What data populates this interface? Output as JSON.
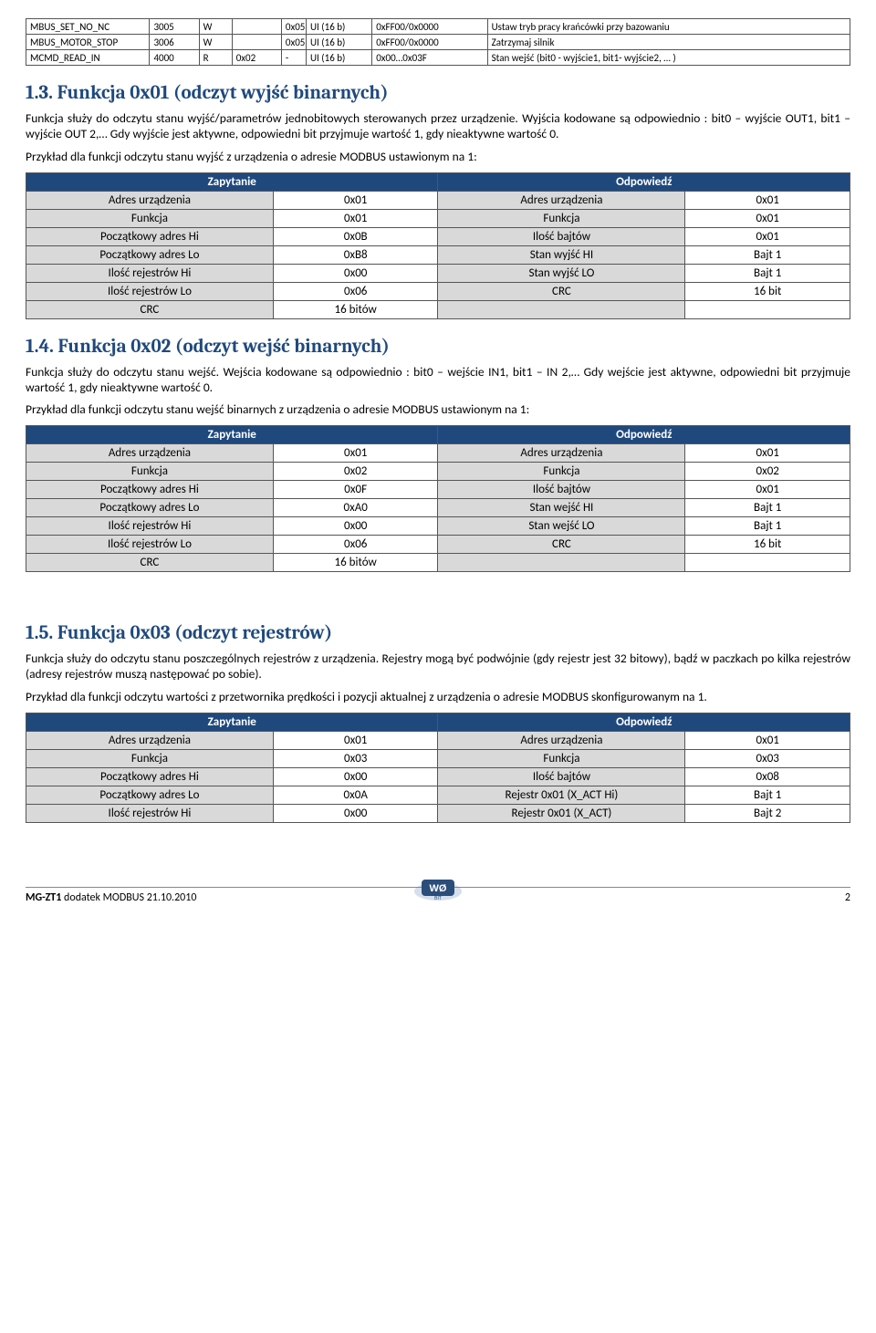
{
  "reg_table": {
    "rows": [
      [
        "MBUS_SET_NO_NC",
        "3005",
        "W",
        "",
        "0x05",
        "UI (16 b)",
        "0xFF00/0x0000",
        "Ustaw tryb pracy krańcówki przy bazowaniu"
      ],
      [
        "MBUS_MOTOR_STOP",
        "3006",
        "W",
        "",
        "0x05",
        "UI (16 b)",
        "0xFF00/0x0000",
        "Zatrzymaj silnik"
      ],
      [
        "MCMD_READ_IN",
        "4000",
        "R",
        "0x02",
        "-",
        "UI (16 b)",
        "0x00…0x03F",
        "Stan wejść (bit0 - wyjście1, bit1- wyjście2, … )"
      ]
    ]
  },
  "s1": {
    "title": "1.3.  Funkcja 0x01 (odczyt wyjść binarnych)",
    "p1": "Funkcja służy do odczytu stanu wyjść/parametrów jednobitowych sterowanych przez urządzenie. Wyjścia kodowane są odpowiednio : bit0 – wyjście OUT1, bit1 – wyjście OUT 2,… Gdy wyjście jest aktywne, odpowiedni bit przyjmuje wartość 1, gdy nieaktywne wartość 0.",
    "p2": "Przykład dla funkcji odczytu stanu wyjść z urządzenia o adresie MODBUS ustawionym na 1:",
    "hdr_q": "Zapytanie",
    "hdr_r": "Odpowiedź",
    "rows": [
      [
        "Adres urządzenia",
        "0x01",
        "Adres urządzenia",
        "0x01"
      ],
      [
        "Funkcja",
        "0x01",
        "Funkcja",
        "0x01"
      ],
      [
        "Początkowy adres Hi",
        "0x0B",
        "Ilość bajtów",
        "0x01"
      ],
      [
        "Początkowy adres Lo",
        "0xB8",
        "Stan wyjść HI",
        "Bajt 1"
      ],
      [
        "Ilość rejestrów Hi",
        "0x00",
        "Stan wyjść LO",
        "Bajt 1"
      ],
      [
        "Ilość rejestrów Lo",
        "0x06",
        "CRC",
        "16 bit"
      ],
      [
        "CRC",
        "16 bitów",
        "",
        ""
      ]
    ]
  },
  "s2": {
    "title": "1.4.  Funkcja 0x02 (odczyt wejść binarnych)",
    "p1": "Funkcja służy do odczytu stanu wejść.  Wejścia kodowane są odpowiednio : bit0 – wejście IN1, bit1 – IN 2,… Gdy wejście jest aktywne, odpowiedni bit przyjmuje wartość 1, gdy nieaktywne wartość 0.",
    "p2": "Przykład dla funkcji odczytu stanu wejść binarnych z urządzenia o adresie MODBUS ustawionym na 1:",
    "hdr_q": "Zapytanie",
    "hdr_r": "Odpowiedź",
    "rows": [
      [
        "Adres urządzenia",
        "0x01",
        "Adres urządzenia",
        "0x01"
      ],
      [
        "Funkcja",
        "0x02",
        "Funkcja",
        "0x02"
      ],
      [
        "Początkowy adres Hi",
        "0x0F",
        "Ilość bajtów",
        "0x01"
      ],
      [
        "Początkowy adres Lo",
        "0xA0",
        "Stan wejść HI",
        "Bajt 1"
      ],
      [
        "Ilość rejestrów Hi",
        "0x00",
        "Stan wejść LO",
        "Bajt 1"
      ],
      [
        "Ilość rejestrów Lo",
        "0x06",
        "CRC",
        "16 bit"
      ],
      [
        "CRC",
        "16 bitów",
        "",
        ""
      ]
    ]
  },
  "s3": {
    "title": "1.5.  Funkcja  0x03 (odczyt rejestrów)",
    "p1": "Funkcja służy do odczytu stanu poszczególnych rejestrów z urządzenia. Rejestry mogą być podwójnie (gdy rejestr jest 32 bitowy), bądź w paczkach po kilka rejestrów (adresy rejestrów muszą następować po sobie).",
    "p2": "Przykład dla funkcji odczytu wartości z przetwornika prędkości i pozycji aktualnej z urządzenia o adresie MODBUS skonfigurowanym na 1.",
    "hdr_q": "Zapytanie",
    "hdr_r": "Odpowiedź",
    "rows": [
      [
        "Adres urządzenia",
        "0x01",
        "Adres urządzenia",
        "0x01"
      ],
      [
        "Funkcja",
        "0x03",
        "Funkcja",
        "0x03"
      ],
      [
        "Początkowy adres Hi",
        "0x00",
        "Ilość bajtów",
        "0x08"
      ],
      [
        "Początkowy adres Lo",
        "0x0A",
        "Rejestr 0x01 (X_ACT Hi)",
        "Bajt 1"
      ],
      [
        "Ilość rejestrów Hi",
        "0x00",
        "Rejestr 0x01 (X_ACT)",
        "Bajt 2"
      ]
    ]
  },
  "footer": {
    "left_bold": "MG-ZT1",
    "left_rest": " dodatek MODBUS  21.10.2010",
    "page": "2"
  }
}
